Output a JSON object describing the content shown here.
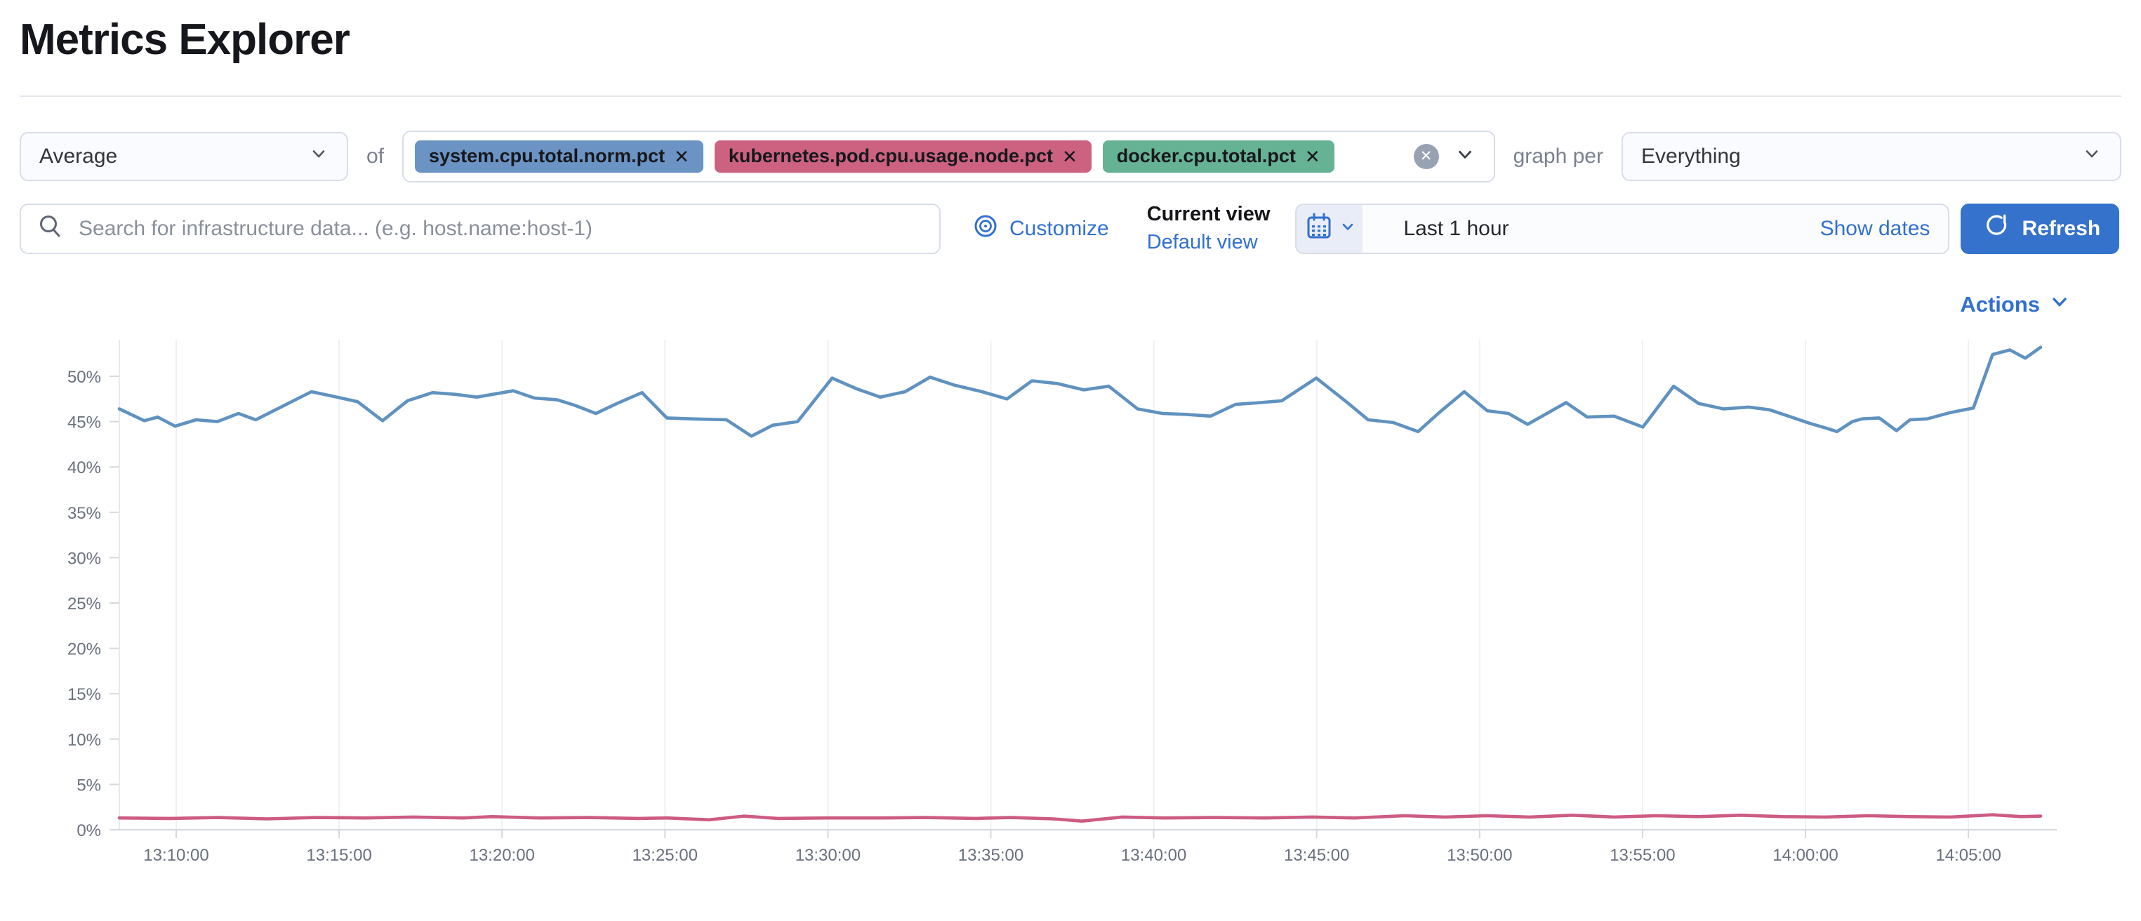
{
  "page": {
    "title": "Metrics Explorer"
  },
  "toolbar": {
    "aggregation": {
      "value": "Average"
    },
    "of_label": "of",
    "metrics": [
      {
        "label": "system.cpu.total.norm.pct",
        "color": "#6b94c5",
        "remove_label": "✕"
      },
      {
        "label": "kubernetes.pod.cpu.usage.node.pct",
        "color": "#cc6280",
        "remove_label": "✕"
      },
      {
        "label": "docker.cpu.total.pct",
        "color": "#66b295",
        "remove_label": "✕"
      }
    ],
    "clear_all_label": "✕",
    "graph_per_label": "graph per",
    "group_by": {
      "value": "Everything"
    }
  },
  "search": {
    "placeholder": "Search for infrastructure data... (e.g. host.name:host-1)"
  },
  "view_controls": {
    "customize_label": "Customize",
    "current_view_label": "Current view",
    "default_view_label": "Default view"
  },
  "time_picker": {
    "value": "Last 1 hour",
    "show_dates_label": "Show dates",
    "refresh_label": "Refresh"
  },
  "actions_label": "Actions",
  "icons": {
    "aggregation": "chevron-down-icon",
    "group_by": "chevron-down-icon",
    "combo": "chevron-down-icon",
    "search": "magnifier-icon",
    "customize": "concentric-circles-icon",
    "date": "calendar-icon",
    "refresh": "refresh-cycle-icon",
    "actions": "chevron-down-icon"
  },
  "colors": {
    "accent": "#3270cf",
    "refresh_button": "#3472cc",
    "series_blue": "#6092c0",
    "series_pink": "#cd5c80",
    "axis_text": "#69707d",
    "grid": "#eef1f6"
  },
  "chart_data": {
    "type": "line",
    "title": "",
    "xlabel": "",
    "ylabel": "",
    "x_tick_labels": [
      "13:10:00",
      "13:15:00",
      "13:20:00",
      "13:25:00",
      "13:30:00",
      "13:35:00",
      "13:40:00",
      "13:45:00",
      "13:50:00",
      "13:55:00",
      "14:00:00",
      "14:05:00"
    ],
    "y_tick_labels": [
      "0%",
      "5%",
      "10%",
      "15%",
      "20%",
      "25%",
      "30%",
      "35%",
      "40%",
      "45%",
      "50%"
    ],
    "y_tick_values": [
      0,
      5,
      10,
      15,
      20,
      25,
      30,
      35,
      40,
      45,
      50
    ],
    "ylim": [
      0,
      54.5
    ],
    "grid": "vertical-only",
    "legend": "none",
    "series": [
      {
        "name": "system.cpu.total.norm.pct",
        "color": "#6092c0",
        "points": [
          [
            0.0,
            46.4
          ],
          [
            0.013,
            45.1
          ],
          [
            0.02,
            45.5
          ],
          [
            0.029,
            44.5
          ],
          [
            0.04,
            45.2
          ],
          [
            0.051,
            45.0
          ],
          [
            0.062,
            45.9
          ],
          [
            0.071,
            45.2
          ],
          [
            0.1,
            48.3
          ],
          [
            0.111,
            47.8
          ],
          [
            0.124,
            47.2
          ],
          [
            0.137,
            45.1
          ],
          [
            0.15,
            47.3
          ],
          [
            0.163,
            48.2
          ],
          [
            0.175,
            48.0
          ],
          [
            0.186,
            47.7
          ],
          [
            0.205,
            48.4
          ],
          [
            0.216,
            47.6
          ],
          [
            0.228,
            47.4
          ],
          [
            0.237,
            46.8
          ],
          [
            0.248,
            45.9
          ],
          [
            0.259,
            47.0
          ],
          [
            0.272,
            48.2
          ],
          [
            0.285,
            45.4
          ],
          [
            0.298,
            45.3
          ],
          [
            0.316,
            45.2
          ],
          [
            0.329,
            43.4
          ],
          [
            0.34,
            44.6
          ],
          [
            0.353,
            45.0
          ],
          [
            0.371,
            49.8
          ],
          [
            0.384,
            48.6
          ],
          [
            0.396,
            47.7
          ],
          [
            0.409,
            48.3
          ],
          [
            0.422,
            49.9
          ],
          [
            0.435,
            49.0
          ],
          [
            0.449,
            48.3
          ],
          [
            0.462,
            47.5
          ],
          [
            0.475,
            49.5
          ],
          [
            0.488,
            49.2
          ],
          [
            0.502,
            48.5
          ],
          [
            0.515,
            48.9
          ],
          [
            0.53,
            46.4
          ],
          [
            0.543,
            45.9
          ],
          [
            0.555,
            45.8
          ],
          [
            0.568,
            45.6
          ],
          [
            0.581,
            46.9
          ],
          [
            0.594,
            47.1
          ],
          [
            0.605,
            47.3
          ],
          [
            0.623,
            49.8
          ],
          [
            0.638,
            47.3
          ],
          [
            0.65,
            45.2
          ],
          [
            0.663,
            44.9
          ],
          [
            0.676,
            43.9
          ],
          [
            0.687,
            46.0
          ],
          [
            0.7,
            48.3
          ],
          [
            0.712,
            46.2
          ],
          [
            0.723,
            45.9
          ],
          [
            0.733,
            44.7
          ],
          [
            0.753,
            47.1
          ],
          [
            0.764,
            45.5
          ],
          [
            0.778,
            45.6
          ],
          [
            0.793,
            44.4
          ],
          [
            0.809,
            48.9
          ],
          [
            0.822,
            47.0
          ],
          [
            0.835,
            46.4
          ],
          [
            0.848,
            46.6
          ],
          [
            0.859,
            46.3
          ],
          [
            0.88,
            44.8
          ],
          [
            0.888,
            44.3
          ],
          [
            0.894,
            43.9
          ],
          [
            0.902,
            45.0
          ],
          [
            0.907,
            45.3
          ],
          [
            0.916,
            45.4
          ],
          [
            0.925,
            44.0
          ],
          [
            0.932,
            45.2
          ],
          [
            0.941,
            45.3
          ],
          [
            0.953,
            46.0
          ],
          [
            0.965,
            46.5
          ],
          [
            0.975,
            52.4
          ],
          [
            0.984,
            52.9
          ],
          [
            0.992,
            52.0
          ],
          [
            1.0,
            53.2
          ]
        ]
      },
      {
        "name": "kubernetes.pod.cpu.usage.node.pct",
        "color": "#cd5c80",
        "points": [
          [
            0.0,
            1.3
          ],
          [
            0.026,
            1.25
          ],
          [
            0.051,
            1.35
          ],
          [
            0.077,
            1.2
          ],
          [
            0.102,
            1.35
          ],
          [
            0.128,
            1.3
          ],
          [
            0.153,
            1.4
          ],
          [
            0.179,
            1.3
          ],
          [
            0.194,
            1.45
          ],
          [
            0.219,
            1.3
          ],
          [
            0.245,
            1.35
          ],
          [
            0.27,
            1.25
          ],
          [
            0.285,
            1.3
          ],
          [
            0.307,
            1.1
          ],
          [
            0.325,
            1.5
          ],
          [
            0.343,
            1.25
          ],
          [
            0.369,
            1.3
          ],
          [
            0.395,
            1.3
          ],
          [
            0.42,
            1.35
          ],
          [
            0.446,
            1.25
          ],
          [
            0.464,
            1.35
          ],
          [
            0.486,
            1.2
          ],
          [
            0.501,
            0.95
          ],
          [
            0.522,
            1.4
          ],
          [
            0.544,
            1.3
          ],
          [
            0.57,
            1.35
          ],
          [
            0.596,
            1.3
          ],
          [
            0.621,
            1.4
          ],
          [
            0.643,
            1.3
          ],
          [
            0.669,
            1.55
          ],
          [
            0.69,
            1.4
          ],
          [
            0.712,
            1.55
          ],
          [
            0.734,
            1.4
          ],
          [
            0.756,
            1.6
          ],
          [
            0.778,
            1.4
          ],
          [
            0.8,
            1.55
          ],
          [
            0.822,
            1.45
          ],
          [
            0.844,
            1.6
          ],
          [
            0.866,
            1.45
          ],
          [
            0.888,
            1.4
          ],
          [
            0.91,
            1.55
          ],
          [
            0.932,
            1.45
          ],
          [
            0.953,
            1.4
          ],
          [
            0.975,
            1.65
          ],
          [
            0.99,
            1.45
          ],
          [
            1.0,
            1.5
          ]
        ]
      }
    ]
  }
}
